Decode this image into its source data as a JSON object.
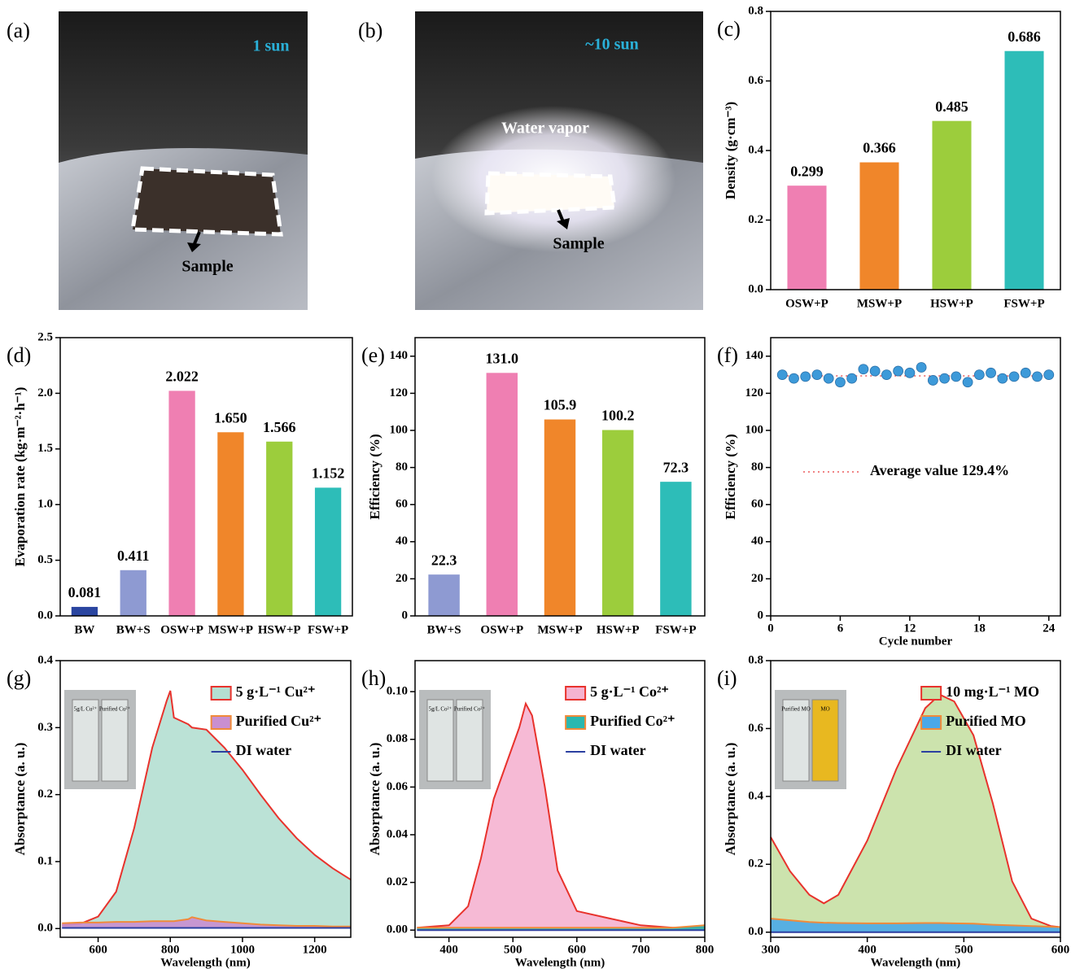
{
  "photos": [
    {
      "panel_label": "(a)",
      "caption": "1 sun",
      "labels": [
        "Sample"
      ]
    },
    {
      "panel_label": "(b)",
      "caption": "~10 sun",
      "labels": [
        "Water vapor",
        "Sample"
      ]
    }
  ],
  "chart_data": [
    {
      "type": "bar",
      "panel_label": "(c)",
      "y_label": "Density (g·cm⁻³)",
      "categories": [
        "OSW+P",
        "MSW+P",
        "HSW+P",
        "FSW+P"
      ],
      "values": [
        0.299,
        0.366,
        0.485,
        0.686
      ],
      "colors": [
        "#ef7fb2",
        "#f0862a",
        "#9ccd3c",
        "#2dbdb8"
      ],
      "ylim": [
        0,
        0.8
      ],
      "yticks": [
        {
          "value": 0,
          "label": "0.0"
        },
        0.2,
        0.4,
        0.6,
        0.8
      ]
    },
    {
      "type": "bar",
      "panel_label": "(d)",
      "y_label": "Evaporation rate (kg·m⁻²·h⁻¹)",
      "categories": [
        "BW",
        "BW+S",
        "OSW+P",
        "MSW+P",
        "HSW+P",
        "FSW+P"
      ],
      "values": [
        0.081,
        0.411,
        2.022,
        1.65,
        1.566,
        1.152
      ],
      "value_labels": [
        "0.081",
        "0.411",
        "2.022",
        "1.650",
        "1.566",
        "1.152"
      ],
      "colors": [
        "#2a45a0",
        "#8e9ad2",
        "#ef7fb2",
        "#f0862a",
        "#9ccd3c",
        "#2dbdb8"
      ],
      "ylim": [
        0,
        2.5
      ],
      "yticks": [
        {
          "value": 0,
          "label": "0.0"
        },
        0.5,
        {
          "value": 1,
          "label": "1.0"
        },
        1.5,
        {
          "value": 2,
          "label": "2.0"
        },
        2.5
      ]
    },
    {
      "type": "bar",
      "panel_label": "(e)",
      "y_label": "Efficiency (%)",
      "categories": [
        "BW+S",
        "OSW+P",
        "MSW+P",
        "HSW+P",
        "FSW+P"
      ],
      "values": [
        22.3,
        131,
        105.9,
        100.2,
        72.3
      ],
      "value_labels": [
        "22.3",
        "131.0",
        "105.9",
        "100.2",
        "72.3"
      ],
      "colors": [
        "#8e9ad2",
        "#ef7fb2",
        "#f0862a",
        "#9ccd3c",
        "#2dbdb8"
      ],
      "ylim": [
        0,
        150
      ],
      "yticks": [
        0,
        20,
        40,
        60,
        80,
        100,
        120,
        140
      ]
    },
    {
      "type": "scatter",
      "panel_label": "(f)",
      "x_label": "Cycle number",
      "y_label": "Efficiency (%)",
      "x": [
        1,
        2,
        3,
        4,
        5,
        6,
        7,
        8,
        9,
        10,
        11,
        12,
        13,
        14,
        15,
        16,
        17,
        18,
        19,
        20,
        21,
        22,
        23,
        24
      ],
      "values": [
        130,
        128,
        129,
        130,
        128,
        126,
        128,
        133,
        132,
        130,
        132,
        131,
        134,
        127,
        128,
        129,
        126,
        130,
        131,
        128,
        129,
        131,
        129,
        130
      ],
      "color": "#3d9ad9",
      "xlim": [
        0,
        25
      ],
      "xticks": [
        0,
        6,
        12,
        18,
        24
      ],
      "ylim": [
        0,
        150
      ],
      "yticks": [
        0,
        20,
        40,
        60,
        80,
        100,
        120,
        140
      ],
      "reference": {
        "value": 129.4,
        "label": "Average value 129.4%",
        "color": "#e8393a"
      }
    },
    {
      "type": "area",
      "panel_label": "(g)",
      "x_label": "Wavelength (nm)",
      "y_label": "Absorptance (a. u.)",
      "inset_labels": [
        "5g/L Cu²⁺",
        "Purified Cu²⁺"
      ],
      "x": [
        500,
        550,
        600,
        650,
        700,
        750,
        790,
        800,
        810,
        850,
        860,
        900,
        950,
        1000,
        1050,
        1100,
        1150,
        1200,
        1250,
        1300
      ],
      "series": [
        {
          "name": "5 g·L⁻¹ Cu²⁺",
          "color": "#e8322c",
          "fill": "#b4dfd2",
          "values": [
            0.005,
            0.007,
            0.018,
            0.055,
            0.15,
            0.27,
            0.34,
            0.355,
            0.315,
            0.305,
            0.3,
            0.297,
            0.27,
            0.237,
            0.2,
            0.165,
            0.135,
            0.11,
            0.09,
            0.073
          ]
        },
        {
          "name": "Purified Cu²⁺",
          "color": "#f08a3a",
          "fill": "#c98fd0",
          "values": [
            0.008,
            0.009,
            0.009,
            0.01,
            0.01,
            0.011,
            0.011,
            0.011,
            0.011,
            0.014,
            0.017,
            0.012,
            0.01,
            0.008,
            0.006,
            0.005,
            0.004,
            0.004,
            0.003,
            0.003
          ]
        },
        {
          "name": "DI water",
          "color": "#2b3fa0",
          "values": [
            0.001,
            0.001,
            0.001,
            0.001,
            0.001,
            0.001,
            0.001,
            0.001,
            0.001,
            0.001,
            0.001,
            0.001,
            0.001,
            0.001,
            0.001,
            0.001,
            0.001,
            0.001,
            0.001,
            0.001
          ]
        }
      ],
      "xlim": [
        495,
        1300
      ],
      "xticks": [
        600,
        800,
        1000,
        1200
      ],
      "ylim": [
        -0.013,
        0.4
      ],
      "yticks": [
        {
          "value": 0,
          "label": "0.0"
        },
        0.1,
        0.2,
        0.3,
        0.4
      ],
      "legend": "upper right"
    },
    {
      "type": "area",
      "panel_label": "(h)",
      "x_label": "Wavelength (nm)",
      "y_label": "Absorptance (a. u.)",
      "inset_labels": [
        "5g/L Co²⁺",
        "Purified Co²⁺"
      ],
      "x": [
        350,
        400,
        430,
        450,
        470,
        490,
        510,
        520,
        530,
        550,
        570,
        600,
        650,
        700,
        750,
        800
      ],
      "series": [
        {
          "name": "5 g·L⁻¹ Co²⁺",
          "color": "#e8322c",
          "fill": "#f5b3d0",
          "values": [
            0.001,
            0.002,
            0.01,
            0.03,
            0.055,
            0.07,
            0.085,
            0.095,
            0.09,
            0.06,
            0.025,
            0.008,
            0.005,
            0.002,
            0.001,
            0.001
          ]
        },
        {
          "name": "Purified Co²⁺",
          "color": "#f08a3a",
          "fill": "#2ab8b0",
          "values": [
            0.001,
            0.001,
            0.001,
            0.001,
            0.001,
            0.001,
            0.001,
            0.001,
            0.001,
            0.001,
            0.001,
            0.001,
            0.001,
            0.001,
            0.001,
            0.002
          ]
        },
        {
          "name": "DI water",
          "color": "#2b3fa0",
          "values": [
            0,
            0,
            0,
            0,
            0,
            0,
            0,
            0,
            0,
            0,
            0,
            0,
            0,
            0,
            0,
            0
          ]
        }
      ],
      "xlim": [
        347,
        800
      ],
      "xticks": [
        400,
        500,
        600,
        700,
        800
      ],
      "ylim": [
        -0.003,
        0.113
      ],
      "yticks": [
        {
          "value": 0,
          "label": "0.00"
        },
        0.02,
        0.04,
        0.06,
        0.08,
        {
          "value": 0.1,
          "label": "0.10"
        }
      ],
      "legend": "upper right"
    },
    {
      "type": "area",
      "panel_label": "(i)",
      "x_label": "Wavelength (nm)",
      "y_label": "Absorptance (a. u.)",
      "inset_labels": [
        "Purified MO",
        "MO"
      ],
      "x": [
        300,
        320,
        340,
        355,
        370,
        400,
        430,
        460,
        475,
        490,
        510,
        530,
        550,
        570,
        590,
        600
      ],
      "series": [
        {
          "name": "10 mg·L⁻¹ MO",
          "color": "#e8322c",
          "fill": "#c7e0a4",
          "values": [
            0.28,
            0.18,
            0.11,
            0.085,
            0.11,
            0.27,
            0.48,
            0.66,
            0.7,
            0.68,
            0.58,
            0.38,
            0.15,
            0.04,
            0.018,
            0.015
          ]
        },
        {
          "name": "Purified MO",
          "color": "#f08a3a",
          "fill": "#4aa8e8",
          "values": [
            0.04,
            0.035,
            0.03,
            0.028,
            0.027,
            0.026,
            0.026,
            0.027,
            0.027,
            0.026,
            0.025,
            0.022,
            0.02,
            0.018,
            0.016,
            0.015
          ]
        },
        {
          "name": "DI water",
          "color": "#2b3fa0",
          "values": [
            0,
            0,
            0,
            0,
            0,
            0,
            0,
            0,
            0,
            0,
            0,
            0,
            0,
            0,
            0,
            0
          ]
        }
      ],
      "xlim": [
        300,
        600
      ],
      "xticks": [
        300,
        400,
        500,
        600
      ],
      "ylim": [
        -0.015,
        0.8
      ],
      "yticks": [
        {
          "value": 0,
          "label": "0.0"
        },
        0.2,
        0.4,
        0.6,
        0.8
      ],
      "legend": "upper right"
    }
  ]
}
